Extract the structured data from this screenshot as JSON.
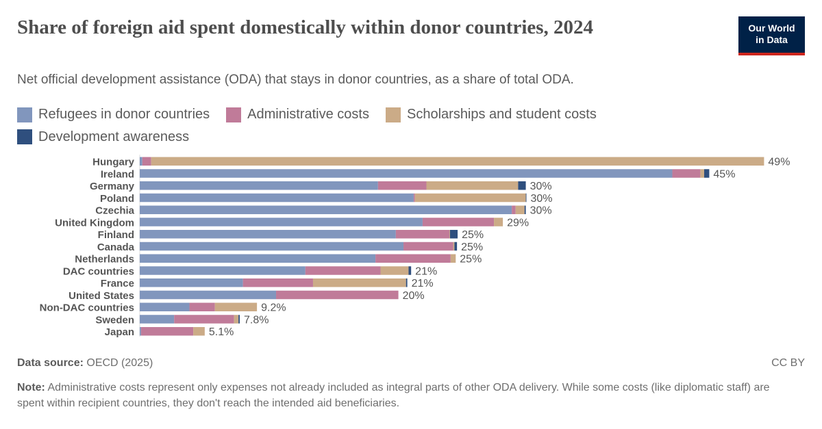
{
  "header": {
    "title": "Share of foreign aid spent domestically within donor countries, 2024",
    "subtitle": "Net official development assistance (ODA) that stays in donor countries, as a share of total ODA.",
    "logo_line1": "Our World",
    "logo_line2": "in Data"
  },
  "footer": {
    "source_label": "Data source:",
    "source": "OECD (2025)",
    "license": "CC BY",
    "note_label": "Note:",
    "note": "Administrative costs represent only expenses not already included as integral parts of other ODA delivery. While some costs (like diplomatic staff) are spent within recipient countries, they don't reach the intended aid beneficiaries."
  },
  "chart_data": {
    "type": "bar",
    "orientation": "horizontal",
    "stacked": true,
    "unit": "%",
    "legend_position": "top",
    "grid": false,
    "categories": [
      "Hungary",
      "Ireland",
      "Germany",
      "Poland",
      "Czechia",
      "United Kingdom",
      "Finland",
      "Canada",
      "Netherlands",
      "DAC countries",
      "France",
      "United States",
      "Non-DAC countries",
      "Sweden",
      "Japan"
    ],
    "totals_labels": [
      "49%",
      "45%",
      "30%",
      "30%",
      "30%",
      "29%",
      "25%",
      "25%",
      "25%",
      "21%",
      "21%",
      "20%",
      "9.2%",
      "7.8%",
      "5.1%"
    ],
    "series": [
      {
        "name": "Refugees in donor countries",
        "color": "#8196bd",
        "values": [
          0.2,
          41.8,
          18.7,
          21.5,
          29.2,
          22.2,
          20.1,
          20.7,
          18.5,
          13.0,
          8.1,
          10.7,
          3.9,
          2.7,
          0.1
        ]
      },
      {
        "name": "Administrative costs",
        "color": "#c07b99",
        "values": [
          0.7,
          2.2,
          3.8,
          0.1,
          0.3,
          5.6,
          4.2,
          3.9,
          5.9,
          5.9,
          5.5,
          9.6,
          2.0,
          4.7,
          4.1
        ]
      },
      {
        "name": "Scholarships and student costs",
        "color": "#cbab87",
        "values": [
          48.1,
          0.3,
          7.2,
          8.7,
          0.7,
          0.7,
          0.05,
          0.1,
          0.4,
          2.2,
          7.3,
          0,
          3.3,
          0.35,
          0.9
        ]
      },
      {
        "name": "Development awareness",
        "color": "#2f4f7e",
        "values": [
          0,
          0.4,
          0.6,
          0.05,
          0.1,
          0,
          0.6,
          0.2,
          0,
          0.2,
          0.1,
          0,
          0,
          0.1,
          0
        ]
      }
    ]
  }
}
